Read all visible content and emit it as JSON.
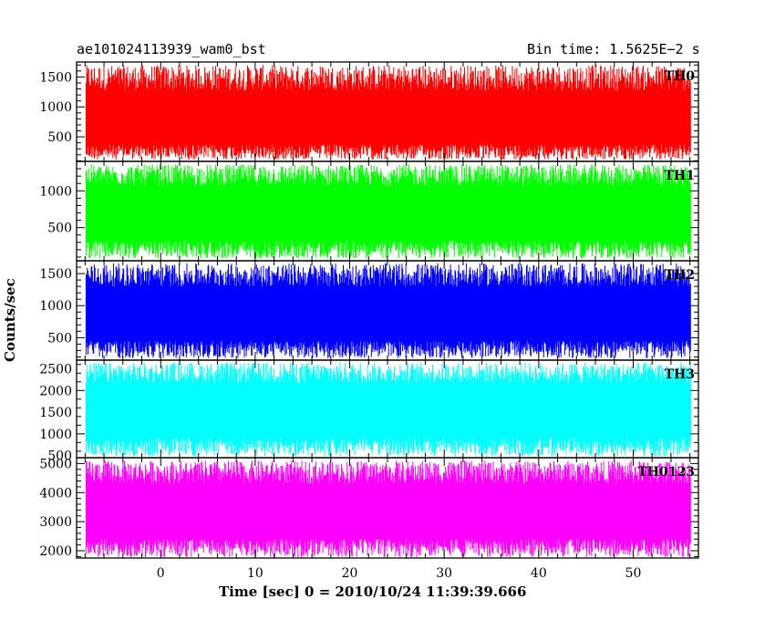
{
  "header": {
    "title_left": "ae101024113939_wam0_bst",
    "title_right": "Bin time: 1.5625E−2 s"
  },
  "chart_data": {
    "type": "line",
    "xlabel": "Time [sec] 0 = 2010/10/24 11:39:39.666",
    "ylabel": "Counts/sec",
    "xlim": [
      -8.9,
      56.9
    ],
    "x_ticks": [
      0,
      10,
      20,
      30,
      40,
      50
    ],
    "data_x_range": [
      -7.9,
      56.1
    ],
    "bin_time": 0.015625,
    "series": [
      {
        "name": "TH0",
        "color": "#ff0000",
        "ylim": [
          90,
          1750
        ],
        "y_ticks": [
          500,
          1000,
          1500
        ],
        "baseline": 750,
        "min": 120,
        "max": 1700
      },
      {
        "name": "TH1",
        "color": "#00ff00",
        "ylim": [
          50,
          1400
        ],
        "y_ticks": [
          500,
          1000
        ],
        "baseline": 700,
        "min": 80,
        "max": 1360
      },
      {
        "name": "TH2",
        "color": "#0000ff",
        "ylim": [
          150,
          1700
        ],
        "y_ticks": [
          500,
          1000,
          1500
        ],
        "baseline": 850,
        "min": 180,
        "max": 1660
      },
      {
        "name": "TH3",
        "color": "#00ffff",
        "ylim": [
          450,
          2700
        ],
        "y_ticks": [
          500,
          1000,
          1500,
          2000,
          2500
        ],
        "baseline": 1550,
        "min": 480,
        "max": 2650
      },
      {
        "name": "TH0123",
        "color": "#ff00ff",
        "ylim": [
          1750,
          5200
        ],
        "y_ticks": [
          2000,
          3000,
          4000,
          5000
        ],
        "baseline": 3350,
        "min": 1780,
        "max": 5100
      }
    ]
  }
}
